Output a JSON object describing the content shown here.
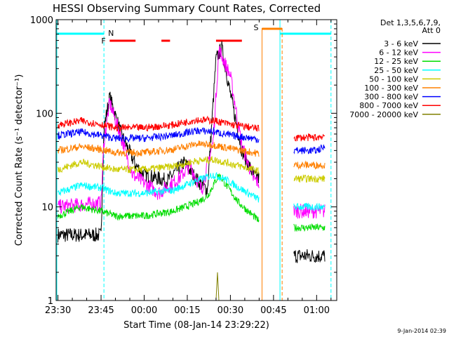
{
  "chart_data": {
    "type": "line",
    "title": "HESSI Observing Summary Count Rates, Corrected",
    "xlabel": "Start Time (08-Jan-14 23:29:22)",
    "ylabel": "Corrected Count Rate (s⁻¹ detector⁻¹)",
    "yscale": "log",
    "ylim": [
      1,
      1000
    ],
    "xlim": [
      "23:29:22",
      "01:07:00"
    ],
    "x_ticks": [
      "23:30",
      "23:45",
      "00:00",
      "00:15",
      "00:30",
      "00:45",
      "01:00"
    ],
    "y_ticks": [
      "1",
      "10",
      "100",
      "1000"
    ],
    "timestamp": "9-Jan-2014 02:39",
    "legend": {
      "header": [
        "Det 1,3,5,6,7,9,",
        "Att 0"
      ],
      "placement": "right"
    },
    "flags": [
      {
        "label": "N",
        "color": "#00ffff"
      },
      {
        "label": "F",
        "color": "#ff0000"
      },
      {
        "label": "S",
        "color": "#ff8000"
      }
    ],
    "series": [
      {
        "name": "3 - 6 keV",
        "color": "#000000",
        "x": [
          "23:30",
          "23:45",
          "23:46",
          "23:48",
          "23:52",
          "23:57",
          "00:00",
          "00:08",
          "00:14",
          "00:18",
          "00:22",
          "00:25",
          "00:27",
          "00:30",
          "00:34",
          "00:38",
          "00:40",
          "00:52",
          "01:00",
          "01:03"
        ],
        "values": [
          5,
          5,
          70,
          150,
          60,
          28,
          22,
          19,
          30,
          20,
          15,
          380,
          500,
          160,
          40,
          22,
          20,
          3,
          3,
          3
        ]
      },
      {
        "name": "6 - 12 keV",
        "color": "#ff00ff",
        "x": [
          "23:30",
          "23:45",
          "23:46",
          "23:48",
          "23:52",
          "23:56",
          "00:00",
          "00:05",
          "00:12",
          "00:16",
          "00:20",
          "00:24",
          "00:26",
          "00:30",
          "00:34",
          "00:38",
          "00:40",
          "00:52",
          "01:00",
          "01:03"
        ],
        "values": [
          10,
          11,
          50,
          130,
          55,
          22,
          18,
          14,
          20,
          28,
          15,
          50,
          480,
          250,
          45,
          20,
          18,
          9,
          9,
          9
        ]
      },
      {
        "name": "12 - 25 keV",
        "color": "#00dd00",
        "x": [
          "23:30",
          "23:38",
          "23:45",
          "23:50",
          "00:00",
          "00:10",
          "00:18",
          "00:22",
          "00:26",
          "00:28",
          "00:33",
          "00:38",
          "00:40",
          "00:52",
          "01:00",
          "01:03"
        ],
        "values": [
          8,
          10,
          9,
          8,
          8,
          9,
          11,
          13,
          22,
          18,
          11,
          8,
          7,
          6,
          6,
          6
        ]
      },
      {
        "name": "25 - 50 keV",
        "color": "#00ffff",
        "x": [
          "23:30",
          "23:38",
          "23:45",
          "23:50",
          "00:00",
          "00:10",
          "00:18",
          "00:24",
          "00:28",
          "00:33",
          "00:38",
          "00:40",
          "00:52",
          "01:00",
          "01:03"
        ],
        "values": [
          14,
          17,
          16,
          14,
          14,
          15,
          19,
          22,
          20,
          16,
          13,
          12,
          10,
          10,
          10
        ]
      },
      {
        "name": "50 - 100 keV",
        "color": "#cccc00",
        "x": [
          "23:30",
          "23:38",
          "23:45",
          "23:50",
          "00:00",
          "00:10",
          "00:18",
          "00:24",
          "00:30",
          "00:38",
          "00:40",
          "00:52",
          "01:00",
          "01:03"
        ],
        "values": [
          25,
          30,
          27,
          25,
          25,
          27,
          31,
          32,
          29,
          25,
          24,
          20,
          20,
          20
        ]
      },
      {
        "name": "100 - 300 keV",
        "color": "#ff8000",
        "x": [
          "23:30",
          "23:38",
          "23:45",
          "23:50",
          "00:00",
          "00:10",
          "00:18",
          "00:24",
          "00:30",
          "00:38",
          "00:40",
          "00:52",
          "01:00",
          "01:03"
        ],
        "values": [
          40,
          44,
          41,
          38,
          38,
          41,
          47,
          46,
          42,
          38,
          37,
          28,
          28,
          28
        ]
      },
      {
        "name": "300 - 800 keV",
        "color": "#0000ff",
        "x": [
          "23:30",
          "23:38",
          "23:45",
          "23:50",
          "00:00",
          "00:10",
          "00:18",
          "00:24",
          "00:30",
          "00:38",
          "00:40",
          "00:52",
          "01:00",
          "01:03"
        ],
        "values": [
          58,
          63,
          58,
          54,
          54,
          58,
          65,
          64,
          58,
          54,
          52,
          40,
          40,
          44
        ]
      },
      {
        "name": "800 - 7000 keV",
        "color": "#ff0000",
        "x": [
          "23:30",
          "23:38",
          "23:45",
          "23:50",
          "00:00",
          "00:10",
          "00:18",
          "00:24",
          "00:30",
          "00:38",
          "00:40",
          "00:52",
          "01:00",
          "01:03"
        ],
        "values": [
          75,
          83,
          76,
          70,
          70,
          75,
          85,
          84,
          76,
          70,
          68,
          55,
          55,
          58
        ]
      },
      {
        "name": "7000 - 20000 keV",
        "color": "#808000",
        "x": [
          "00:25",
          "00:25:30",
          "00:26"
        ],
        "values": [
          1,
          2,
          1
        ]
      }
    ]
  }
}
